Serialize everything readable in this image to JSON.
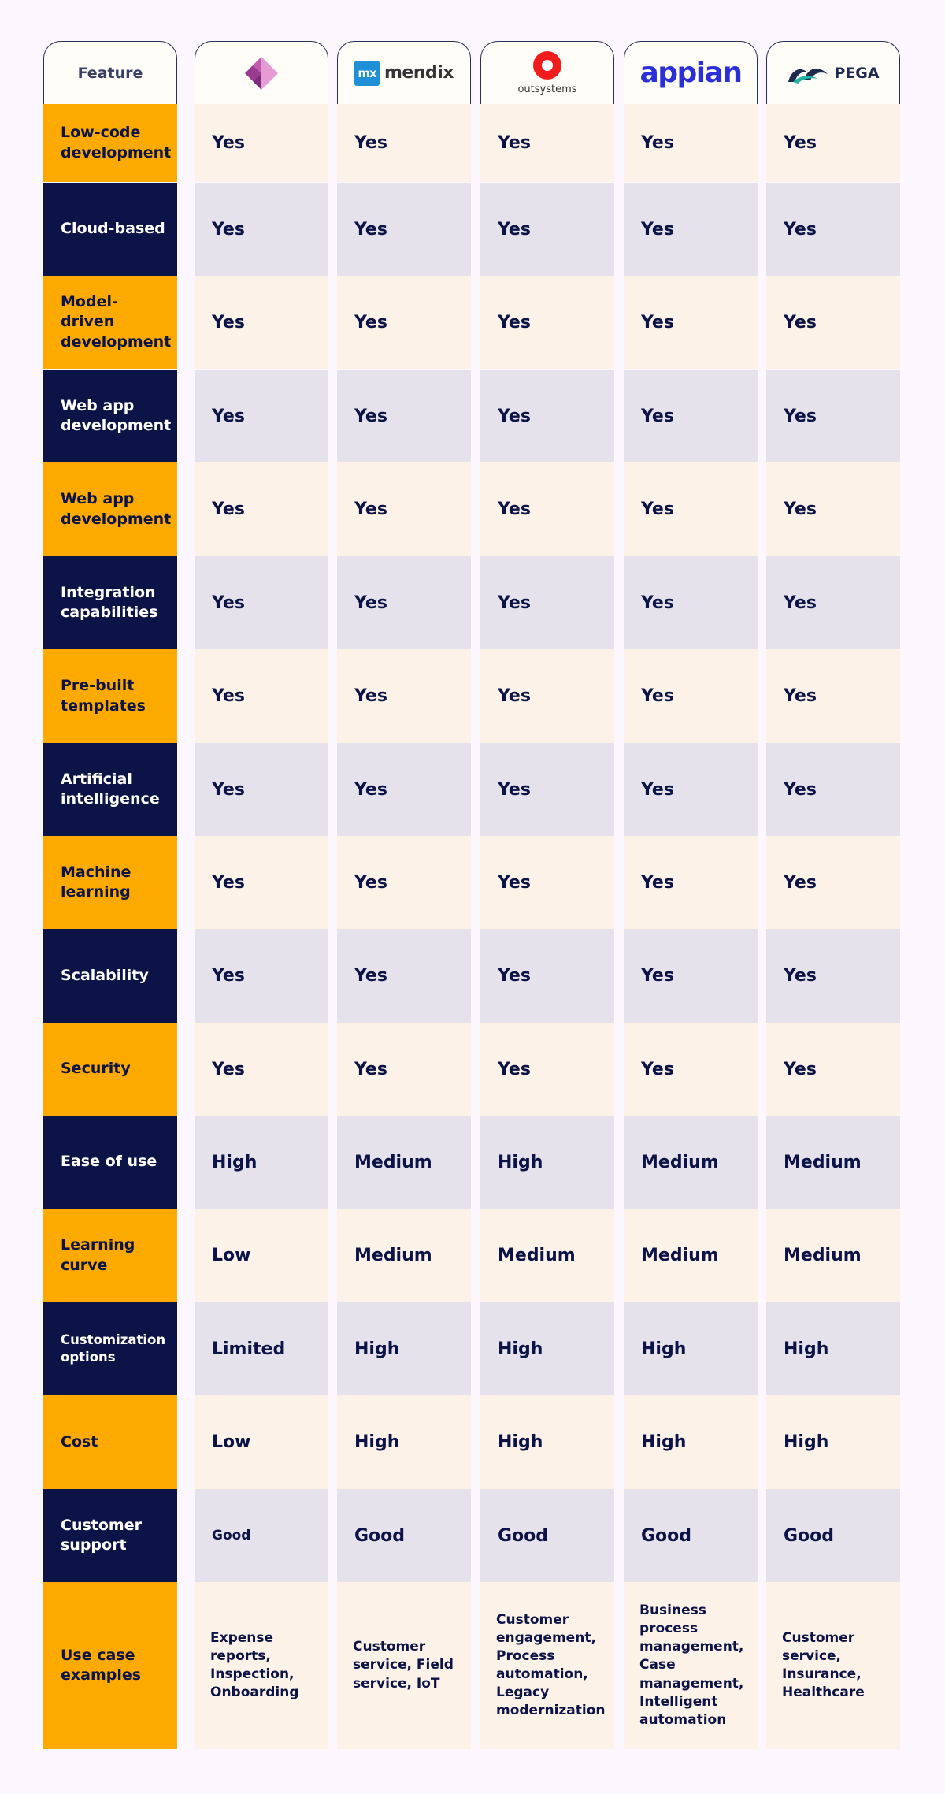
{
  "header": {
    "feature_label": "Feature",
    "vendors": [
      {
        "logo": "power-apps-icon",
        "label": ""
      },
      {
        "logo": "mendix-logo",
        "badge": "mx",
        "label": "mendix"
      },
      {
        "logo": "outsystems-logo",
        "label": "outsystems"
      },
      {
        "logo": "appian-logo",
        "label": "appian"
      },
      {
        "logo": "pega-logo",
        "label": "PEGA"
      }
    ]
  },
  "colors": {
    "accent_orange": "#fdaa00",
    "navy": "#0c1447",
    "odd_row_cell": "#fdf2e8",
    "even_row_cell": "#e5e2eb",
    "mendix_blue": "#1f8fd6",
    "outsystems_red": "#f11d1d",
    "appian_blue": "#2b2fd8",
    "power_apps_purple": "#8a2f8a",
    "pega_teal": "#22b5a5"
  },
  "rows": [
    {
      "feature": "Low-code development",
      "values": [
        "Yes",
        "Yes",
        "Yes",
        "Yes",
        "Yes"
      ]
    },
    {
      "feature": "Cloud-based",
      "values": [
        "Yes",
        "Yes",
        "Yes",
        "Yes",
        "Yes"
      ]
    },
    {
      "feature": "Model-driven development",
      "values": [
        "Yes",
        "Yes",
        "Yes",
        "Yes",
        "Yes"
      ]
    },
    {
      "feature": "Web app development",
      "values": [
        "Yes",
        "Yes",
        "Yes",
        "Yes",
        "Yes"
      ]
    },
    {
      "feature": "Web app development",
      "values": [
        "Yes",
        "Yes",
        "Yes",
        "Yes",
        "Yes"
      ]
    },
    {
      "feature": "Integration capabilities",
      "values": [
        "Yes",
        "Yes",
        "Yes",
        "Yes",
        "Yes"
      ]
    },
    {
      "feature": "Pre-built templates",
      "values": [
        "Yes",
        "Yes",
        "Yes",
        "Yes",
        "Yes"
      ]
    },
    {
      "feature": "Artificial intelligence",
      "values": [
        "Yes",
        "Yes",
        "Yes",
        "Yes",
        "Yes"
      ]
    },
    {
      "feature": "Machine learning",
      "values": [
        "Yes",
        "Yes",
        "Yes",
        "Yes",
        "Yes"
      ]
    },
    {
      "feature": "Scalability",
      "values": [
        "Yes",
        "Yes",
        "Yes",
        "Yes",
        "Yes"
      ]
    },
    {
      "feature": "Security",
      "values": [
        "Yes",
        "Yes",
        "Yes",
        "Yes",
        "Yes"
      ]
    },
    {
      "feature": "Ease of use",
      "values": [
        "High",
        "Medium",
        "High",
        "Medium",
        "Medium"
      ]
    },
    {
      "feature": "Learning curve",
      "values": [
        "Low",
        "Medium",
        "Medium",
        "Medium",
        "Medium"
      ]
    },
    {
      "feature": "Customization options",
      "values": [
        "Limited",
        "High",
        "High",
        "High",
        "High"
      ]
    },
    {
      "feature": "Cost",
      "values": [
        "Low",
        "High",
        "High",
        "High",
        "High"
      ]
    },
    {
      "feature": "Customer support",
      "values": [
        "Good",
        "Good",
        "Good",
        "Good",
        "Good"
      ]
    },
    {
      "feature": "Use case examples",
      "values": [
        "Expense reports, Inspection, Onboarding",
        "Customer service, Field service, IoT",
        "Customer engagement, Process automation, Legacy modernization",
        "Business process management, Case management, Intelligent automation",
        "Customer service, Insurance, Healthcare"
      ]
    }
  ]
}
